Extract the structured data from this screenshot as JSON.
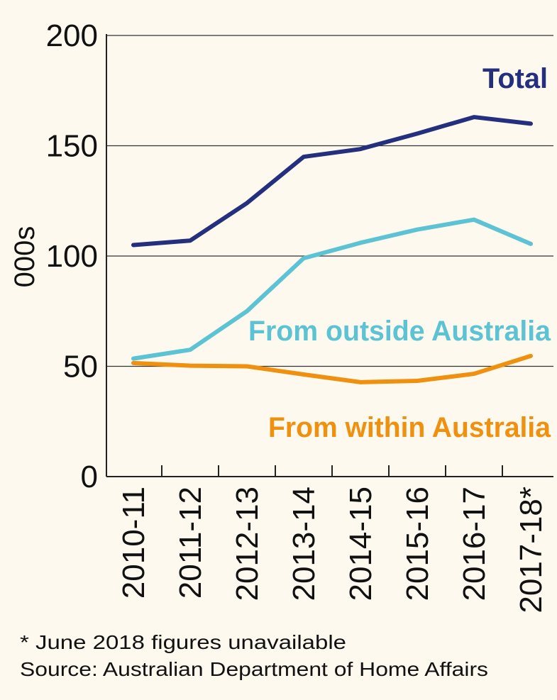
{
  "chart_data": {
    "type": "line",
    "title": "",
    "xlabel": "",
    "ylabel": "000s",
    "ylim": [
      0,
      200
    ],
    "yticks": [
      0,
      50,
      100,
      150,
      200
    ],
    "grid": true,
    "categories": [
      "2010-11",
      "2011-12",
      "2012-13",
      "2013-14",
      "2014-15",
      "2015-16",
      "2016-17",
      "2017-18*"
    ],
    "series": [
      {
        "name": "Total",
        "color": "#24307e",
        "values": [
          105,
          107,
          124,
          145,
          148.5,
          155.5,
          163,
          160
        ]
      },
      {
        "name": "From outside Australia",
        "color": "#5bc3d3",
        "values": [
          53.5,
          57.5,
          75,
          99,
          106,
          112,
          116.5,
          105.5
        ]
      },
      {
        "name": "From within Australia",
        "color": "#f0900f",
        "values": [
          51.5,
          50.3,
          50,
          46.3,
          42.8,
          43.4,
          46.6,
          54.7
        ]
      }
    ],
    "legend": "inline labels"
  },
  "footnotes": {
    "note": "* June 2018 figures unavailable",
    "source": "Source: Australian Department of Home Affairs"
  },
  "colors": {
    "background": "#fdf9ef",
    "axis": "#222222"
  }
}
